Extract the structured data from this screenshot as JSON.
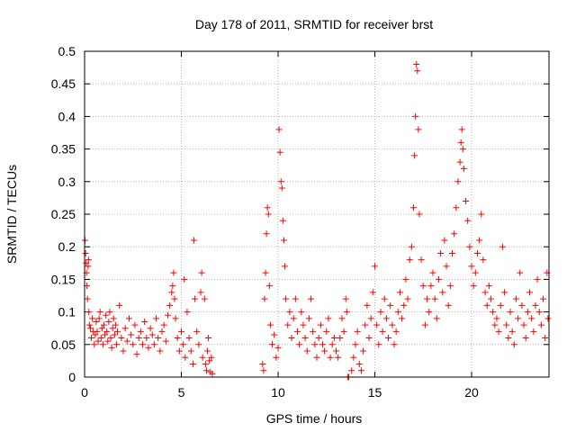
{
  "chart_data": {
    "type": "scatter",
    "title": "Day 178 of 2011, SRMTID for receiver brst",
    "xlabel": "GPS time / hours",
    "ylabel": "SRMTID / TECUs",
    "xlim": [
      0,
      24
    ],
    "ylim": [
      0,
      0.5
    ],
    "x_ticks": [
      0,
      5,
      10,
      15,
      20
    ],
    "x_tick_labels": [
      "0",
      "5",
      "10",
      "15",
      "20"
    ],
    "y_ticks": [
      0,
      0.05,
      0.1,
      0.15,
      0.2,
      0.25,
      0.3,
      0.35,
      0.4,
      0.45,
      0.5
    ],
    "y_tick_labels": [
      "0",
      "0.05",
      "0.1",
      "0.15",
      "0.2",
      "0.25",
      "0.3",
      "0.35",
      "0.4",
      "0.45",
      "0.5"
    ],
    "grid": true,
    "marker": "plus",
    "color": "#ff0000",
    "series": [
      {
        "name": "",
        "points": [
          [
            0.02,
            0.21
          ],
          [
            0.05,
            0.19
          ],
          [
            0.08,
            0.175
          ],
          [
            0.1,
            0.16
          ],
          [
            0.12,
            0.14
          ],
          [
            0.15,
            0.12
          ],
          [
            0.18,
            0.17
          ],
          [
            0.2,
            0.18
          ],
          [
            0.22,
            0.1
          ],
          [
            0.25,
            0.08
          ],
          [
            0.3,
            0.075
          ],
          [
            0.35,
            0.06
          ],
          [
            0.4,
            0.09
          ],
          [
            0.45,
            0.07
          ],
          [
            0.5,
            0.05
          ],
          [
            0.55,
            0.065
          ],
          [
            0.6,
            0.085
          ],
          [
            0.65,
            0.07
          ],
          [
            0.7,
            0.055
          ],
          [
            0.75,
            0.09
          ],
          [
            0.8,
            0.1
          ],
          [
            0.85,
            0.06
          ],
          [
            0.9,
            0.075
          ],
          [
            0.95,
            0.05
          ],
          [
            1.0,
            0.08
          ],
          [
            1.05,
            0.065
          ],
          [
            1.1,
            0.095
          ],
          [
            1.15,
            0.07
          ],
          [
            1.2,
            0.055
          ],
          [
            1.25,
            0.085
          ],
          [
            1.3,
            0.1
          ],
          [
            1.35,
            0.06
          ],
          [
            1.4,
            0.045
          ],
          [
            1.45,
            0.075
          ],
          [
            1.5,
            0.09
          ],
          [
            1.55,
            0.065
          ],
          [
            1.6,
            0.08
          ],
          [
            1.65,
            0.05
          ],
          [
            1.7,
            0.07
          ],
          [
            1.8,
            0.11
          ],
          [
            1.9,
            0.06
          ],
          [
            2.0,
            0.04
          ],
          [
            2.1,
            0.075
          ],
          [
            2.2,
            0.055
          ],
          [
            2.3,
            0.09
          ],
          [
            2.4,
            0.065
          ],
          [
            2.5,
            0.05
          ],
          [
            2.6,
            0.08
          ],
          [
            2.7,
            0.035
          ],
          [
            2.8,
            0.06
          ],
          [
            2.9,
            0.07
          ],
          [
            3.0,
            0.05
          ],
          [
            3.1,
            0.085
          ],
          [
            3.2,
            0.06
          ],
          [
            3.3,
            0.045
          ],
          [
            3.4,
            0.075
          ],
          [
            3.5,
            0.065
          ],
          [
            3.6,
            0.05
          ],
          [
            3.7,
            0.09
          ],
          [
            3.8,
            0.06
          ],
          [
            3.9,
            0.04
          ],
          [
            4.0,
            0.07
          ],
          [
            4.1,
            0.08
          ],
          [
            4.2,
            0.055
          ],
          [
            4.3,
            0.095
          ],
          [
            4.4,
            0.11
          ],
          [
            4.5,
            0.13
          ],
          [
            4.55,
            0.14
          ],
          [
            4.6,
            0.16
          ],
          [
            4.65,
            0.12
          ],
          [
            4.7,
            0.09
          ],
          [
            4.8,
            0.06
          ],
          [
            4.9,
            0.04
          ],
          [
            5.0,
            0.07
          ],
          [
            5.1,
            0.05
          ],
          [
            5.15,
            0.15
          ],
          [
            5.2,
            0.03
          ],
          [
            5.3,
            0.1
          ],
          [
            5.4,
            0.06
          ],
          [
            5.5,
            0.04
          ],
          [
            5.6,
            0.02
          ],
          [
            5.65,
            0.21
          ],
          [
            5.7,
            0.12
          ],
          [
            5.8,
            0.07
          ],
          [
            5.9,
            0.05
          ],
          [
            6.0,
            0.13
          ],
          [
            6.05,
            0.16
          ],
          [
            6.1,
            0.03
          ],
          [
            6.2,
            0.12
          ],
          [
            6.25,
            0.02
          ],
          [
            6.3,
            0.01
          ],
          [
            6.35,
            0.04
          ],
          [
            6.4,
            0.06
          ],
          [
            6.45,
            0.025
          ],
          [
            6.5,
            0.008
          ],
          [
            6.55,
            0.03
          ],
          [
            6.6,
            0.005
          ],
          [
            9.2,
            0.02
          ],
          [
            9.25,
            0.01
          ],
          [
            9.3,
            0.12
          ],
          [
            9.35,
            0.16
          ],
          [
            9.4,
            0.22
          ],
          [
            9.45,
            0.26
          ],
          [
            9.5,
            0.25
          ],
          [
            9.55,
            0.14
          ],
          [
            9.6,
            0.08
          ],
          [
            9.7,
            0.05
          ],
          [
            9.8,
            0.065
          ],
          [
            9.9,
            0.03
          ],
          [
            10.0,
            0.045
          ],
          [
            10.05,
            0.38
          ],
          [
            10.1,
            0.345
          ],
          [
            10.15,
            0.3
          ],
          [
            10.2,
            0.29
          ],
          [
            10.25,
            0.24
          ],
          [
            10.3,
            0.21
          ],
          [
            10.35,
            0.17
          ],
          [
            10.4,
            0.12
          ],
          [
            10.5,
            0.08
          ],
          [
            10.6,
            0.1
          ],
          [
            10.7,
            0.06
          ],
          [
            10.8,
            0.09
          ],
          [
            10.9,
            0.12
          ],
          [
            11.0,
            0.07
          ],
          [
            11.1,
            0.05
          ],
          [
            11.2,
            0.1
          ],
          [
            11.3,
            0.08
          ],
          [
            11.4,
            0.06
          ],
          [
            11.5,
            0.04
          ],
          [
            11.6,
            0.09
          ],
          [
            11.7,
            0.12
          ],
          [
            11.8,
            0.07
          ],
          [
            11.9,
            0.05
          ],
          [
            12.0,
            0.03
          ],
          [
            12.1,
            0.06
          ],
          [
            12.2,
            0.08
          ],
          [
            12.3,
            0.05
          ],
          [
            12.4,
            0.04
          ],
          [
            12.5,
            0.07
          ],
          [
            12.6,
            0.09
          ],
          [
            12.7,
            0.03
          ],
          [
            12.8,
            0.05
          ],
          [
            12.9,
            0.06
          ],
          [
            13.0,
            0.04
          ],
          [
            13.1,
            0.03
          ],
          [
            13.2,
            0.06
          ],
          [
            13.3,
            0.09
          ],
          [
            13.4,
            0.07
          ],
          [
            13.5,
            0.12
          ],
          [
            13.55,
            0.1
          ],
          [
            13.6,
            0.0
          ],
          [
            13.65,
            0.0
          ],
          [
            13.8,
            0.01
          ],
          [
            13.9,
            0.03
          ],
          [
            14.0,
            0.05
          ],
          [
            14.1,
            0.07
          ],
          [
            14.2,
            0.02
          ],
          [
            14.3,
            0.01
          ],
          [
            14.4,
            0.04
          ],
          [
            14.5,
            0.08
          ],
          [
            14.6,
            0.11
          ],
          [
            14.7,
            0.06
          ],
          [
            14.8,
            0.09
          ],
          [
            14.9,
            0.13
          ],
          [
            15.0,
            0.17
          ],
          [
            15.1,
            0.08
          ],
          [
            15.2,
            0.05
          ],
          [
            15.3,
            0.1
          ],
          [
            15.4,
            0.07
          ],
          [
            15.5,
            0.12
          ],
          [
            15.6,
            0.09
          ],
          [
            15.7,
            0.06
          ],
          [
            15.8,
            0.11
          ],
          [
            15.9,
            0.08
          ],
          [
            16.0,
            0.05
          ],
          [
            16.1,
            0.07
          ],
          [
            16.2,
            0.1
          ],
          [
            16.3,
            0.13
          ],
          [
            16.4,
            0.09
          ],
          [
            16.5,
            0.11
          ],
          [
            16.6,
            0.15
          ],
          [
            16.7,
            0.12
          ],
          [
            16.8,
            0.18
          ],
          [
            16.9,
            0.2
          ],
          [
            17.0,
            0.26
          ],
          [
            17.05,
            0.34
          ],
          [
            17.1,
            0.4
          ],
          [
            17.15,
            0.48
          ],
          [
            17.2,
            0.47
          ],
          [
            17.25,
            0.38
          ],
          [
            17.3,
            0.25
          ],
          [
            17.4,
            0.18
          ],
          [
            17.5,
            0.14
          ],
          [
            17.6,
            0.08
          ],
          [
            17.7,
            0.12
          ],
          [
            17.8,
            0.1
          ],
          [
            17.9,
            0.14
          ],
          [
            18.0,
            0.16
          ],
          [
            18.1,
            0.12
          ],
          [
            18.2,
            0.09
          ],
          [
            18.3,
            0.15
          ],
          [
            18.4,
            0.19
          ],
          [
            18.5,
            0.13
          ],
          [
            18.6,
            0.21
          ],
          [
            18.7,
            0.17
          ],
          [
            18.8,
            0.11
          ],
          [
            18.9,
            0.14
          ],
          [
            19.0,
            0.19
          ],
          [
            19.1,
            0.22
          ],
          [
            19.2,
            0.26
          ],
          [
            19.3,
            0.3
          ],
          [
            19.4,
            0.33
          ],
          [
            19.45,
            0.36
          ],
          [
            19.5,
            0.38
          ],
          [
            19.55,
            0.35
          ],
          [
            19.6,
            0.32
          ],
          [
            19.7,
            0.27
          ],
          [
            19.8,
            0.24
          ],
          [
            19.9,
            0.2
          ],
          [
            20.0,
            0.17
          ],
          [
            20.1,
            0.14
          ],
          [
            20.2,
            0.16
          ],
          [
            20.3,
            0.19
          ],
          [
            20.4,
            0.21
          ],
          [
            20.5,
            0.25
          ],
          [
            20.6,
            0.18
          ],
          [
            20.7,
            0.13
          ],
          [
            20.8,
            0.11
          ],
          [
            20.9,
            0.14
          ],
          [
            21.0,
            0.12
          ],
          [
            21.1,
            0.1
          ],
          [
            21.2,
            0.08
          ],
          [
            21.3,
            0.09
          ],
          [
            21.4,
            0.07
          ],
          [
            21.5,
            0.11
          ],
          [
            21.6,
            0.2
          ],
          [
            21.7,
            0.13
          ],
          [
            21.8,
            0.08
          ],
          [
            21.9,
            0.06
          ],
          [
            22.0,
            0.1
          ],
          [
            22.1,
            0.07
          ],
          [
            22.2,
            0.05
          ],
          [
            22.3,
            0.12
          ],
          [
            22.4,
            0.09
          ],
          [
            22.5,
            0.16
          ],
          [
            22.6,
            0.11
          ],
          [
            22.7,
            0.08
          ],
          [
            22.8,
            0.06
          ],
          [
            22.9,
            0.1
          ],
          [
            23.0,
            0.13
          ],
          [
            23.1,
            0.09
          ],
          [
            23.2,
            0.07
          ],
          [
            23.3,
            0.11
          ],
          [
            23.4,
            0.15
          ],
          [
            23.5,
            0.1
          ],
          [
            23.6,
            0.08
          ],
          [
            23.7,
            0.12
          ],
          [
            23.8,
            0.06
          ],
          [
            23.9,
            0.16
          ],
          [
            23.95,
            0.09
          ]
        ]
      }
    ]
  }
}
